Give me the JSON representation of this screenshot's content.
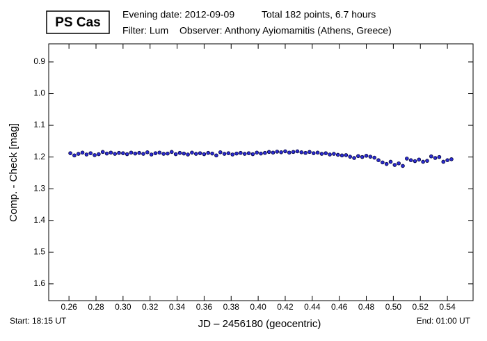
{
  "chart_data": {
    "type": "scatter",
    "title": "PS Cas",
    "subtitle_lines": [
      "Evening date: 2012-09-09",
      "Total 182 points, 6.7 hours",
      "Filter: Lum",
      "Observer: Anthony Ayiomamitis (Athens, Greece)"
    ],
    "x_label": "JD – 2456180  (geocentric)",
    "y_label": "Comp. - Check [mag]",
    "start_label": "Start: 18:15 UT",
    "end_label": "End: 01:00 UT",
    "xlim": [
      0.245,
      0.559
    ],
    "ylim": [
      0.843,
      1.653
    ],
    "y_inverted": true,
    "xticks": [
      0.26,
      0.28,
      {
        "value": 0.3,
        "label": "0.30"
      },
      0.32,
      0.34,
      0.36,
      0.38,
      {
        "value": 0.4,
        "label": "0.40"
      },
      0.42,
      0.44,
      0.46,
      0.48,
      {
        "value": 0.5,
        "label": "0.50"
      },
      0.52,
      0.54
    ],
    "yticks": [
      0.9,
      {
        "value": 1,
        "label": "1.0"
      },
      1.1,
      1.2,
      1.3,
      1.4,
      1.5,
      1.6
    ],
    "grid": false,
    "color": "#2b2bd0",
    "x": [
      0.261,
      0.264,
      0.267,
      0.27,
      0.273,
      0.276,
      0.279,
      0.282,
      0.285,
      0.288,
      0.291,
      0.294,
      0.297,
      0.3,
      0.303,
      0.306,
      0.309,
      0.312,
      0.315,
      0.318,
      0.321,
      0.324,
      0.327,
      0.33,
      0.333,
      0.336,
      0.339,
      0.342,
      0.345,
      0.348,
      0.351,
      0.354,
      0.357,
      0.36,
      0.363,
      0.366,
      0.369,
      0.372,
      0.375,
      0.378,
      0.381,
      0.384,
      0.387,
      0.39,
      0.393,
      0.396,
      0.399,
      0.402,
      0.405,
      0.408,
      0.411,
      0.414,
      0.417,
      0.42,
      0.423,
      0.426,
      0.429,
      0.432,
      0.435,
      0.438,
      0.441,
      0.444,
      0.447,
      0.45,
      0.453,
      0.456,
      0.459,
      0.462,
      0.465,
      0.468,
      0.471,
      0.474,
      0.477,
      0.48,
      0.483,
      0.486,
      0.489,
      0.492,
      0.495,
      0.498,
      0.501,
      0.504,
      0.507,
      0.51,
      0.513,
      0.516,
      0.519,
      0.522,
      0.525,
      0.528,
      0.531,
      0.534,
      0.537,
      0.54,
      0.543
    ],
    "values": [
      1.188,
      1.195,
      1.19,
      1.186,
      1.192,
      1.188,
      1.194,
      1.191,
      1.184,
      1.189,
      1.186,
      1.19,
      1.187,
      1.188,
      1.191,
      1.186,
      1.189,
      1.187,
      1.19,
      1.185,
      1.192,
      1.188,
      1.186,
      1.19,
      1.189,
      1.184,
      1.191,
      1.187,
      1.189,
      1.192,
      1.186,
      1.19,
      1.188,
      1.191,
      1.187,
      1.189,
      1.195,
      1.185,
      1.19,
      1.188,
      1.192,
      1.189,
      1.187,
      1.19,
      1.188,
      1.191,
      1.186,
      1.189,
      1.187,
      1.184,
      1.186,
      1.183,
      1.185,
      1.182,
      1.186,
      1.184,
      1.182,
      1.185,
      1.187,
      1.184,
      1.188,
      1.186,
      1.19,
      1.188,
      1.192,
      1.19,
      1.193,
      1.195,
      1.194,
      1.199,
      1.203,
      1.197,
      1.2,
      1.196,
      1.199,
      1.202,
      1.21,
      1.217,
      1.222,
      1.215,
      1.225,
      1.22,
      1.228,
      1.205,
      1.21,
      1.213,
      1.208,
      1.215,
      1.212,
      1.198,
      1.203,
      1.2,
      1.215,
      1.21,
      1.207
    ]
  }
}
